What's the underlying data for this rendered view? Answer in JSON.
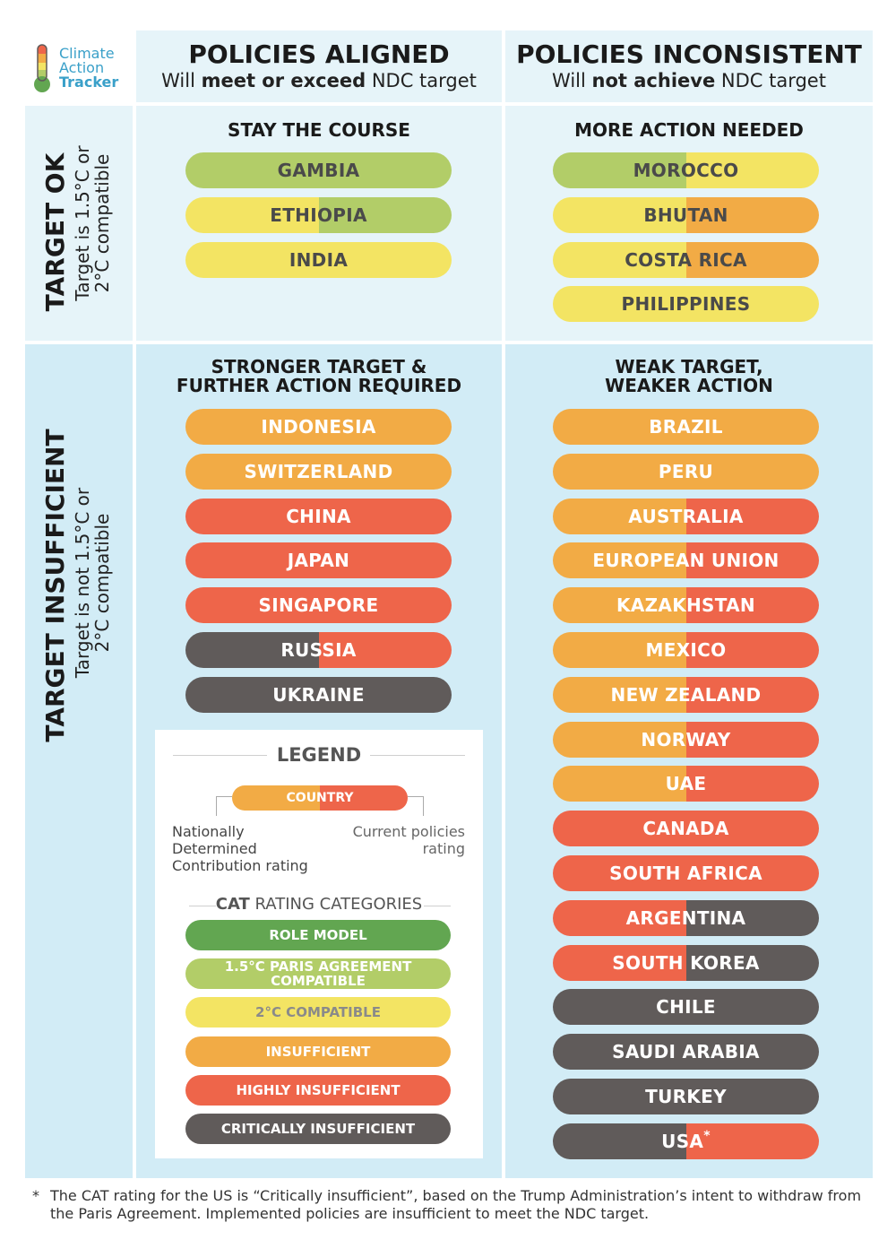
{
  "logo": {
    "line1": "Climate",
    "line2": "Action",
    "line3": "Tracker"
  },
  "columns": {
    "aligned": {
      "title": "POLICIES ALIGNED",
      "sub_pre": "Will ",
      "sub_bold": "meet or exceed",
      "sub_post": " NDC target"
    },
    "inconsistent": {
      "title": "POLICIES INCONSISTENT",
      "sub_pre": "Will ",
      "sub_bold": "not achieve",
      "sub_post": " NDC target"
    }
  },
  "rows": {
    "ok": {
      "title": "TARGET OK",
      "sub1": "Target is 1.5°C or",
      "sub2": "2°C compatible"
    },
    "insufficient": {
      "title": "TARGET INSUFFICIENT",
      "sub1": "Target is not 1.5°C or",
      "sub2": "2°C compatible"
    }
  },
  "quadrants": {
    "q1": {
      "title1": "STAY THE COURSE",
      "title2": ""
    },
    "q2": {
      "title1": "MORE ACTION NEEDED",
      "title2": ""
    },
    "q3": {
      "title1": "STRONGER TARGET &",
      "title2": "FURTHER ACTION REQUIRED"
    },
    "q4": {
      "title1": "WEAK TARGET,",
      "title2": "WEAKER ACTION"
    }
  },
  "colors": {
    "role_model": "#62a651",
    "paris": "#b2cd68",
    "two_c": "#f3e463",
    "insufficient": "#f2ab45",
    "highly": "#ee654a",
    "critically": "#605b5a"
  },
  "countries": {
    "q1": [
      {
        "name": "GAMBIA",
        "ndc": "paris",
        "policy": "paris"
      },
      {
        "name": "ETHIOPIA",
        "ndc": "two_c",
        "policy": "paris"
      },
      {
        "name": "INDIA",
        "ndc": "two_c",
        "policy": "two_c"
      }
    ],
    "q2": [
      {
        "name": "MOROCCO",
        "ndc": "paris",
        "policy": "two_c"
      },
      {
        "name": "BHUTAN",
        "ndc": "two_c",
        "policy": "insufficient"
      },
      {
        "name": "COSTA RICA",
        "ndc": "two_c",
        "policy": "insufficient"
      },
      {
        "name": "PHILIPPINES",
        "ndc": "two_c",
        "policy": "two_c"
      }
    ],
    "q3": [
      {
        "name": "INDONESIA",
        "ndc": "insufficient",
        "policy": "insufficient"
      },
      {
        "name": "SWITZERLAND",
        "ndc": "insufficient",
        "policy": "insufficient"
      },
      {
        "name": "CHINA",
        "ndc": "highly",
        "policy": "highly"
      },
      {
        "name": "JAPAN",
        "ndc": "highly",
        "policy": "highly"
      },
      {
        "name": "SINGAPORE",
        "ndc": "highly",
        "policy": "highly"
      },
      {
        "name": "RUSSIA",
        "ndc": "critically",
        "policy": "highly"
      },
      {
        "name": "UKRAINE",
        "ndc": "critically",
        "policy": "critically"
      }
    ],
    "q4": [
      {
        "name": "BRAZIL",
        "ndc": "insufficient",
        "policy": "insufficient"
      },
      {
        "name": "PERU",
        "ndc": "insufficient",
        "policy": "insufficient"
      },
      {
        "name": "AUSTRALIA",
        "ndc": "insufficient",
        "policy": "highly"
      },
      {
        "name": "EUROPEAN UNION",
        "ndc": "insufficient",
        "policy": "highly"
      },
      {
        "name": "KAZAKHSTAN",
        "ndc": "insufficient",
        "policy": "highly"
      },
      {
        "name": "MEXICO",
        "ndc": "insufficient",
        "policy": "highly"
      },
      {
        "name": "NEW ZEALAND",
        "ndc": "insufficient",
        "policy": "highly"
      },
      {
        "name": "NORWAY",
        "ndc": "insufficient",
        "policy": "highly"
      },
      {
        "name": "UAE",
        "ndc": "insufficient",
        "policy": "highly"
      },
      {
        "name": "CANADA",
        "ndc": "highly",
        "policy": "highly"
      },
      {
        "name": "SOUTH AFRICA",
        "ndc": "highly",
        "policy": "highly"
      },
      {
        "name": "ARGENTINA",
        "ndc": "highly",
        "policy": "critically"
      },
      {
        "name": "SOUTH KOREA",
        "ndc": "highly",
        "policy": "critically"
      },
      {
        "name": "CHILE",
        "ndc": "critically",
        "policy": "critically"
      },
      {
        "name": "SAUDI ARABIA",
        "ndc": "critically",
        "policy": "critically"
      },
      {
        "name": "TURKEY",
        "ndc": "critically",
        "policy": "critically"
      },
      {
        "name": "USA",
        "ndc": "critically",
        "policy": "highly",
        "mark": "*"
      }
    ]
  },
  "legend": {
    "title": "LEGEND",
    "sample": "COUNTRY",
    "left_note": [
      "Nationally",
      "Determined",
      "Contribution rating"
    ],
    "right_note": [
      "Current policies",
      "rating"
    ],
    "cat_bold": "CAT",
    "cat_rest": " RATING CATEGORIES",
    "categories": [
      {
        "key": "role_model",
        "label1": "ROLE MODEL",
        "label2": ""
      },
      {
        "key": "paris",
        "label1": "1.5°C PARIS AGREEMENT",
        "label2": "COMPATIBLE"
      },
      {
        "key": "two_c",
        "label1": "2°C COMPATIBLE",
        "label2": ""
      },
      {
        "key": "insufficient",
        "label1": "INSUFFICIENT",
        "label2": ""
      },
      {
        "key": "highly",
        "label1": "HIGHLY INSUFFICIENT",
        "label2": ""
      },
      {
        "key": "critically",
        "label1": "CRITICALLY INSUFFICIENT",
        "label2": ""
      }
    ]
  },
  "footnote": {
    "star": "*",
    "text": "The CAT rating for the US is “Critically insufficient”, based on the Trump Administration’s intent to withdraw from the Paris Agreement. Implemented policies are insufficient to meet the NDC target."
  }
}
